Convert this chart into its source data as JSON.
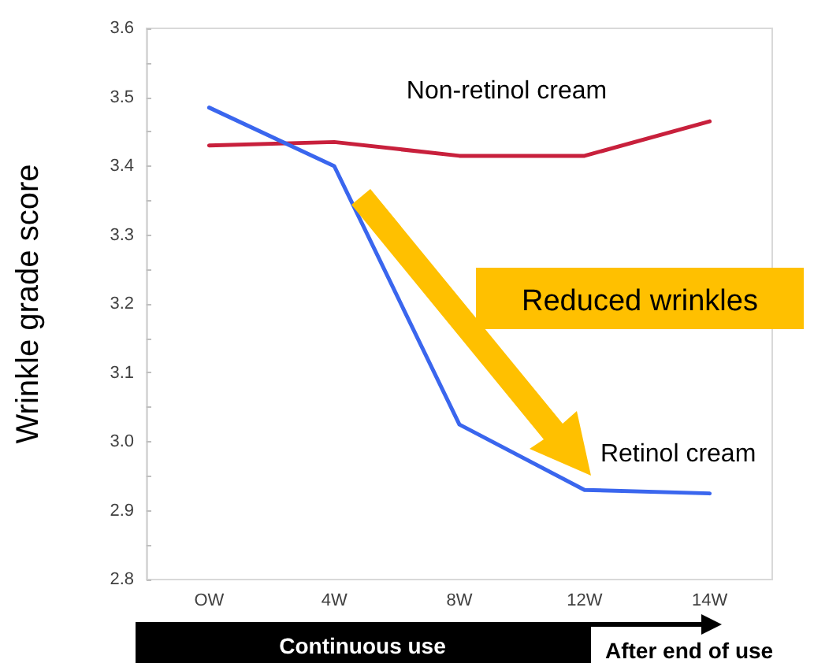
{
  "chart_data": {
    "type": "line",
    "ylabel": "Wrinkle grade score",
    "categories": [
      "OW",
      "4W",
      "8W",
      "12W",
      "14W"
    ],
    "series": [
      {
        "name": "Non-retinol cream",
        "color": "#c8203c",
        "values": [
          3.43,
          3.435,
          3.415,
          3.415,
          3.465
        ]
      },
      {
        "name": "Retinol cream",
        "color": "#3a66ee",
        "values": [
          3.485,
          3.4,
          3.025,
          2.93,
          2.925
        ]
      }
    ],
    "ylim": [
      2.8,
      3.6
    ],
    "yticks": [
      2.8,
      {
        "value": 2.85,
        "label": null
      },
      2.9,
      {
        "value": 2.95,
        "label": null
      },
      {
        "value": 3,
        "label": "3.0"
      },
      {
        "value": 3.05,
        "label": null
      },
      3.1,
      {
        "value": 3.15,
        "label": null
      },
      3.2,
      {
        "value": 3.25,
        "label": null
      },
      3.3,
      {
        "value": 3.35,
        "label": null
      },
      3.4,
      {
        "value": 3.45,
        "label": null
      },
      3.5,
      {
        "value": 3.55,
        "label": null
      },
      3.6
    ],
    "annotations": [
      "Reduced wrinkles",
      "Continuous use",
      "After end of use"
    ],
    "grid": false,
    "legend": false,
    "marker": "none",
    "line_style": "solid"
  }
}
